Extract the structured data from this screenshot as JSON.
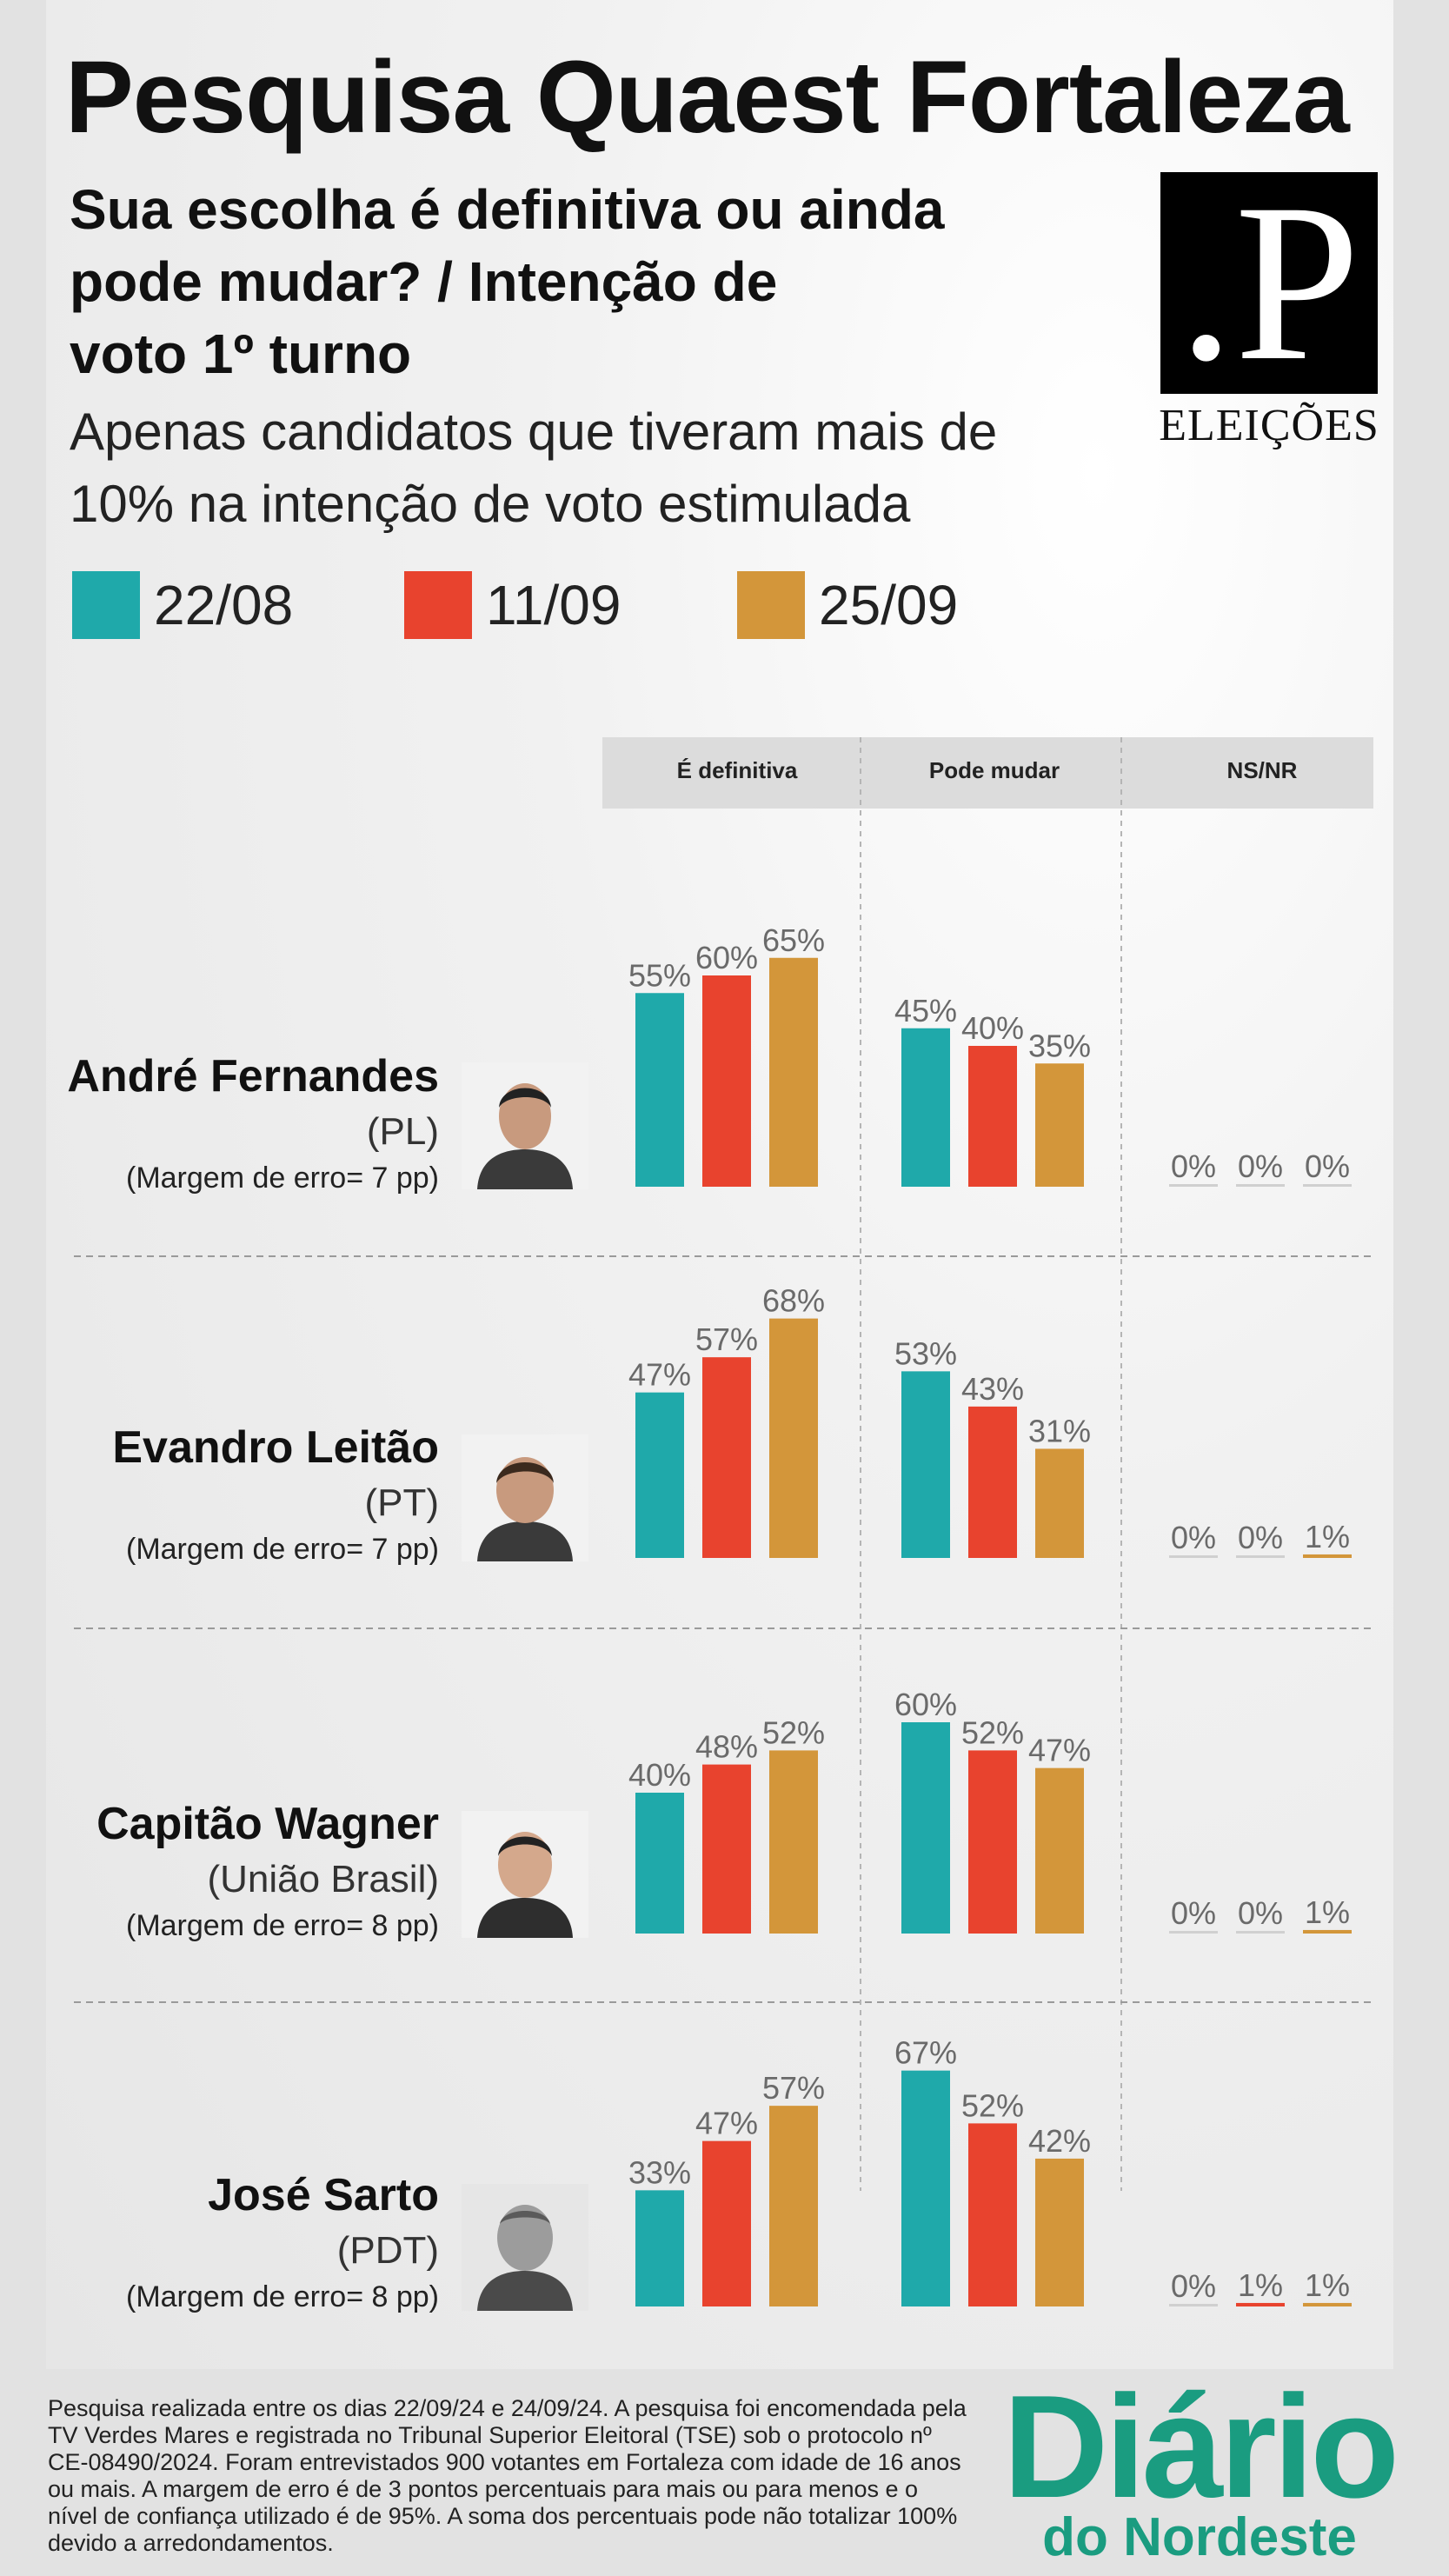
{
  "header": {
    "title": "Pesquisa Quaest Fortaleza",
    "question_lines": [
      "Sua escolha é definitiva ou ainda",
      "pode mudar? / Intenção de",
      "voto 1º turno"
    ],
    "subtitle_lines": [
      "Apenas candidatos que tiveram mais de",
      "10% na intenção de voto estimulada"
    ]
  },
  "logo": {
    "mark": ".P",
    "caption": "ELEIÇÕES"
  },
  "legend": [
    {
      "label": "22/08",
      "color": "#1fa9aa"
    },
    {
      "label": "11/09",
      "color": "#e8432e"
    },
    {
      "label": "25/09",
      "color": "#d3963a"
    }
  ],
  "columns": [
    "É definitiva",
    "Pode mudar",
    "NS/NR"
  ],
  "candidates": [
    {
      "name": "André Fernandes",
      "party": "(PL)",
      "margin": "(Margem de erro= 7 pp)"
    },
    {
      "name": "Evandro Leitão",
      "party": "(PT)",
      "margin": "(Margem de erro= 7 pp)"
    },
    {
      "name": "Capitão Wagner",
      "party": "(União Brasil)",
      "margin": "(Margem de erro= 8 pp)"
    },
    {
      "name": "José Sarto",
      "party": "(PDT)",
      "margin": "(Margem de erro= 8 pp)"
    }
  ],
  "chart_data": {
    "type": "bar",
    "title": "Sua escolha é definitiva ou ainda pode mudar? / Intenção de voto 1º turno",
    "unit": "%",
    "ylim": [
      0,
      100
    ],
    "groups": [
      "É definitiva",
      "Pode mudar",
      "NS/NR"
    ],
    "series_names": [
      "22/08",
      "11/09",
      "25/09"
    ],
    "series_colors": [
      "#1fa9aa",
      "#e8432e",
      "#d3963a"
    ],
    "rows": [
      {
        "candidate": "André Fernandes",
        "values": [
          [
            55,
            60,
            65
          ],
          [
            45,
            40,
            35
          ],
          [
            0,
            0,
            0
          ]
        ]
      },
      {
        "candidate": "Evandro Leitão",
        "values": [
          [
            47,
            57,
            68
          ],
          [
            53,
            43,
            31
          ],
          [
            0,
            0,
            1
          ]
        ]
      },
      {
        "candidate": "Capitão Wagner",
        "values": [
          [
            40,
            48,
            52
          ],
          [
            60,
            52,
            47
          ],
          [
            0,
            0,
            1
          ]
        ]
      },
      {
        "candidate": "José Sarto",
        "values": [
          [
            33,
            47,
            57
          ],
          [
            67,
            52,
            42
          ],
          [
            0,
            1,
            1
          ]
        ]
      }
    ]
  },
  "footnote": "Pesquisa realizada entre os dias 22/09/24 e 24/09/24. A pesquisa foi encomendada pela TV Verdes Mares e registrada no Tribunal Superior Eleitoral (TSE) sob o protocolo nº CE-08490/2024. Foram entrevistados 900 votantes em Fortaleza com idade de 16 anos ou mais. A margem de erro é de 3 pontos percentuais para mais ou para menos e o nível de confiança utilizado é de 95%. A soma dos percentuais pode não totalizar 100% devido a arredondamentos.",
  "brand": {
    "line1": "Diário",
    "line2": "do Nordeste"
  }
}
